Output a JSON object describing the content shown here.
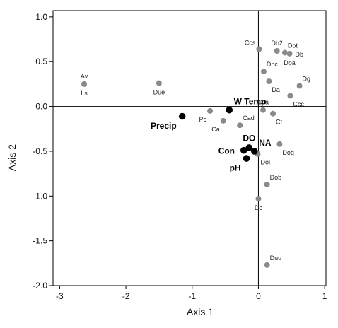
{
  "chart_data": {
    "type": "scatter",
    "xlabel": "Axis 1",
    "ylabel": "Axis 2",
    "xlim": [
      -3.1,
      1.02
    ],
    "ylim": [
      -2.0,
      1.07
    ],
    "xticks": [
      -3,
      -2,
      -1,
      0,
      1
    ],
    "xtick_labels": [
      "-3",
      "-2",
      "-1",
      "0",
      "1"
    ],
    "yticks": [
      1.0,
      0.5,
      0.0,
      -0.5,
      -1.0,
      -1.5,
      -2.0
    ],
    "ytick_labels": [
      "1.0",
      "0.5",
      "0.0",
      "-0.5",
      "-1.0",
      "-1.5",
      "-2.0"
    ],
    "reference_lines": {
      "x": 0,
      "y": 0
    },
    "colors": {
      "species": "#8a8a8a",
      "environment": "#000000"
    },
    "series": [
      {
        "group": "species",
        "points": [
          {
            "label": "Av",
            "x": -2.63,
            "y": 0.25,
            "label_pos": "above"
          },
          {
            "label": "Ls",
            "x": -2.63,
            "y": 0.25,
            "label_pos": "below"
          },
          {
            "label": "Due",
            "x": -1.5,
            "y": 0.26,
            "label_pos": "below"
          },
          {
            "label": "Ccs",
            "x": 0.01,
            "y": 0.64,
            "label_pos": "upper-left"
          },
          {
            "label": "Db2",
            "x": 0.28,
            "y": 0.62,
            "label_pos": "above"
          },
          {
            "label": "Dot",
            "x": 0.4,
            "y": 0.6,
            "label_pos": "upper-right"
          },
          {
            "label": "Db",
            "x": 0.47,
            "y": 0.59,
            "label_pos": "right"
          },
          {
            "label": "Dpa",
            "x": 0.47,
            "y": 0.59,
            "label_pos": "below"
          },
          {
            "label": "Dpc",
            "x": 0.08,
            "y": 0.39,
            "label_pos": "upper-right"
          },
          {
            "label": "Dg",
            "x": 0.62,
            "y": 0.23,
            "label_pos": "upper-right"
          },
          {
            "label": "Da",
            "x": 0.16,
            "y": 0.28,
            "label_pos": "lower-right"
          },
          {
            "label": "Ccc",
            "x": 0.48,
            "y": 0.12,
            "label_pos": "lower-right"
          },
          {
            "label": "Cca",
            "x": 0.07,
            "y": -0.04,
            "label_pos": "above"
          },
          {
            "label": "Ct",
            "x": 0.22,
            "y": -0.08,
            "label_pos": "lower-right"
          },
          {
            "label": "Pc",
            "x": -0.73,
            "y": -0.05,
            "label_pos": "lower-left"
          },
          {
            "label": "Cad",
            "x": -0.28,
            "y": -0.21,
            "label_pos": "upper-right"
          },
          {
            "label": "Ca",
            "x": -0.53,
            "y": -0.16,
            "label_pos": "lower-left"
          },
          {
            "label": "Dol",
            "x": -0.01,
            "y": -0.53,
            "label_pos": "lower-right"
          },
          {
            "label": "Dog",
            "x": 0.32,
            "y": -0.42,
            "label_pos": "lower-right"
          },
          {
            "label": "Dob",
            "x": 0.13,
            "y": -0.87,
            "label_pos": "upper-right"
          },
          {
            "label": "Dc",
            "x": 0.0,
            "y": -1.03,
            "label_pos": "below"
          },
          {
            "label": "Duu",
            "x": 0.13,
            "y": -1.77,
            "label_pos": "upper-right"
          }
        ]
      },
      {
        "group": "environment",
        "points": [
          {
            "label": "Precip",
            "x": -1.15,
            "y": -0.11,
            "label_pos": "lower-left"
          },
          {
            "label": "W Temp",
            "x": -0.44,
            "y": -0.04,
            "label_pos": "upper-right"
          },
          {
            "label": "DO",
            "x": -0.14,
            "y": -0.46,
            "label_pos": "above"
          },
          {
            "label": "NA",
            "x": -0.06,
            "y": -0.5,
            "label_pos": "upper-right"
          },
          {
            "label": "Con",
            "x": -0.22,
            "y": -0.49,
            "label_pos": "left"
          },
          {
            "label": "pH",
            "x": -0.18,
            "y": -0.58,
            "label_pos": "lower-left"
          }
        ]
      }
    ]
  }
}
